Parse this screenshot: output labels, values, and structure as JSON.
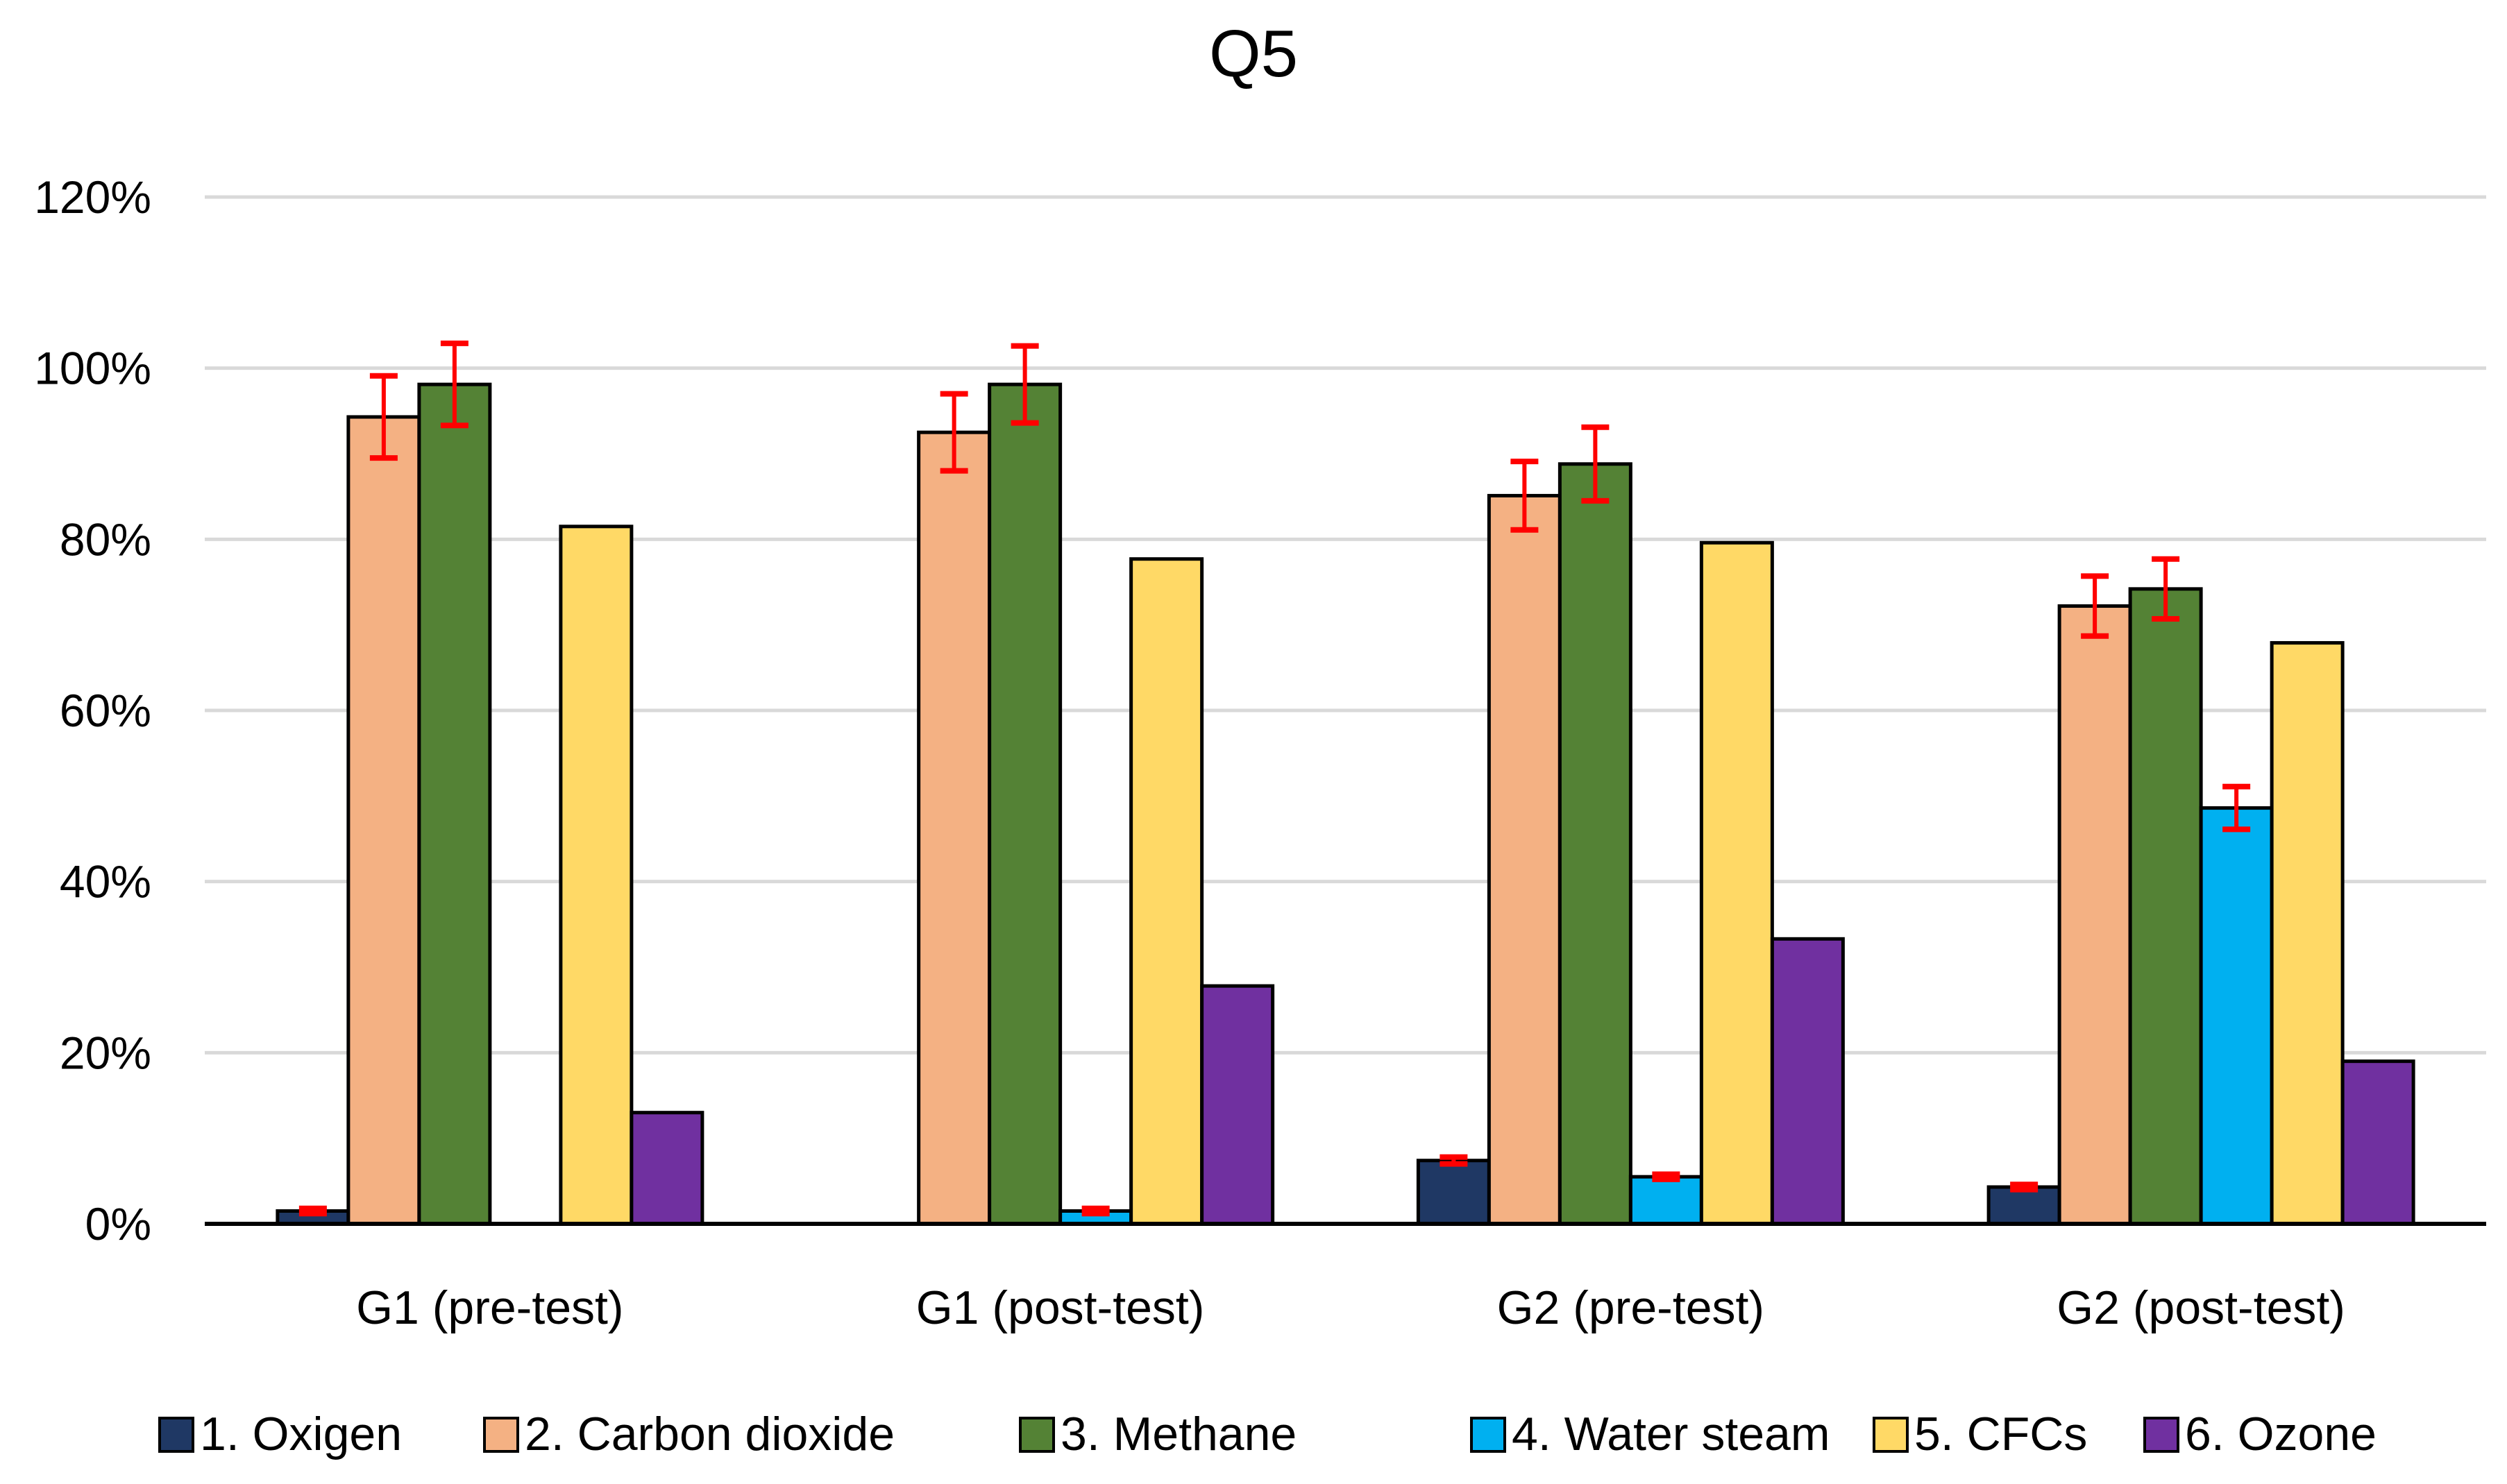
{
  "chart_data": {
    "type": "bar",
    "title": "Q5",
    "xlabel": "",
    "ylabel": "",
    "ylim": [
      0,
      1.2
    ],
    "yticks": [
      0,
      0.2,
      0.4,
      0.6,
      0.8,
      1.0,
      1.2
    ],
    "ytick_labels": [
      "0%",
      "20%",
      "40%",
      "60%",
      "80%",
      "100%",
      "120%"
    ],
    "grid": true,
    "legend_position": "bottom",
    "categories": [
      "G1 (pre-test)",
      "G1 (post-test)",
      "G2 (pre-test)",
      "G2 (post-test)"
    ],
    "series": [
      {
        "name": "1. Oxigen",
        "color": "#1f3864",
        "values": [
          0.015,
          0.0,
          0.074,
          0.043
        ],
        "errors": [
          0.003,
          null,
          0.004,
          0.003
        ]
      },
      {
        "name": "2. Carbon dioxide",
        "color": "#f4b183",
        "values": [
          0.943,
          0.925,
          0.851,
          0.722
        ],
        "errors": [
          0.048,
          0.045,
          0.04,
          0.035
        ]
      },
      {
        "name": "3. Methane",
        "color": "#548235",
        "values": [
          0.981,
          0.981,
          0.888,
          0.742
        ],
        "errors": [
          0.048,
          0.045,
          0.043,
          0.035
        ]
      },
      {
        "name": "4. Water steam",
        "color": "#00b0f0",
        "values": [
          0.0,
          0.015,
          0.055,
          0.486
        ],
        "errors": [
          null,
          0.003,
          0.003,
          0.025
        ]
      },
      {
        "name": "5. CFCs",
        "color": "#ffd966",
        "values": [
          0.815,
          0.777,
          0.796,
          0.679
        ],
        "errors": [
          null,
          null,
          null,
          null
        ]
      },
      {
        "name": "6. Ozone",
        "color": "#7030a0",
        "values": [
          0.13,
          0.278,
          0.333,
          0.19
        ],
        "errors": [
          null,
          null,
          null,
          null
        ]
      }
    ]
  }
}
